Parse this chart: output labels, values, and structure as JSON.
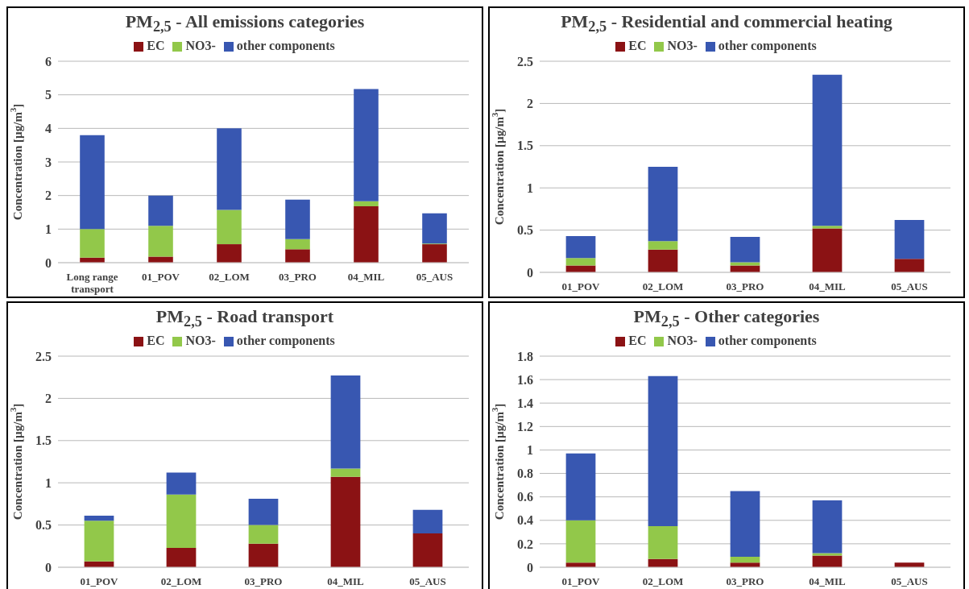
{
  "chart_data": [
    {
      "type": "bar",
      "stacked": true,
      "title": "PM$_{2,5}$ - All emissions categories",
      "ylabel": "Concentration [µg/m$^{3}$]",
      "categories": [
        "Long range transport",
        "01_POV",
        "02_LOM",
        "03_PRO",
        "04_MIL",
        "05_AUS"
      ],
      "ylim": [
        0,
        6
      ],
      "yticks": [
        0,
        1,
        2,
        3,
        4,
        5,
        6
      ],
      "grid": "y",
      "legend": "top",
      "series": [
        {
          "name": "EC",
          "color": "#8b1214",
          "values": [
            0.15,
            0.18,
            0.55,
            0.4,
            1.68,
            0.55
          ]
        },
        {
          "name": "NO3-",
          "color": "#92c84a",
          "values": [
            0.85,
            0.92,
            1.02,
            0.3,
            0.15,
            0.02
          ]
        },
        {
          "name": "other components",
          "color": "#3857b1",
          "values": [
            2.8,
            0.9,
            2.43,
            1.18,
            3.34,
            0.9
          ]
        }
      ]
    },
    {
      "type": "bar",
      "stacked": true,
      "title": "PM$_{2,5}$ - Residential and commercial heating",
      "ylabel": "Concentration [µg/m$^{3}$]",
      "categories": [
        "01_POV",
        "02_LOM",
        "03_PRO",
        "04_MIL",
        "05_AUS"
      ],
      "ylim": [
        0,
        2.5
      ],
      "yticks": [
        0,
        0.5,
        1,
        1.5,
        2,
        2.5
      ],
      "grid": "y",
      "legend": "top",
      "series": [
        {
          "name": "EC",
          "color": "#8b1214",
          "values": [
            0.08,
            0.27,
            0.08,
            0.52,
            0.16
          ]
        },
        {
          "name": "NO3-",
          "color": "#92c84a",
          "values": [
            0.09,
            0.1,
            0.04,
            0.03,
            0
          ]
        },
        {
          "name": "other components",
          "color": "#3857b1",
          "values": [
            0.26,
            0.88,
            0.3,
            1.79,
            0.46
          ]
        }
      ]
    },
    {
      "type": "bar",
      "stacked": true,
      "title": "PM$_{2,5}$ - Road transport",
      "ylabel": "Concentration [µg/m$^{3}$]",
      "categories": [
        "01_POV",
        "02_LOM",
        "03_PRO",
        "04_MIL",
        "05_AUS"
      ],
      "ylim": [
        0,
        2.5
      ],
      "yticks": [
        0,
        0.5,
        1,
        1.5,
        2,
        2.5
      ],
      "grid": "y",
      "legend": "top",
      "series": [
        {
          "name": "EC",
          "color": "#8b1214",
          "values": [
            0.07,
            0.23,
            0.28,
            1.07,
            0.4
          ]
        },
        {
          "name": "NO3-",
          "color": "#92c84a",
          "values": [
            0.48,
            0.63,
            0.22,
            0.1,
            0
          ]
        },
        {
          "name": "other components",
          "color": "#3857b1",
          "values": [
            0.06,
            0.26,
            0.31,
            1.1,
            0.28
          ]
        }
      ]
    },
    {
      "type": "bar",
      "stacked": true,
      "title": "PM$_{2,5}$ - Other categories",
      "ylabel": "Concentration [µg/m$^{3}$]",
      "categories": [
        "01_POV",
        "02_LOM",
        "03_PRO",
        "04_MIL",
        "05_AUS"
      ],
      "ylim": [
        0,
        1.8
      ],
      "yticks": [
        0,
        0.2,
        0.4,
        0.6,
        0.8,
        1,
        1.2,
        1.4,
        1.6,
        1.8
      ],
      "grid": "y",
      "legend": "top",
      "series": [
        {
          "name": "EC",
          "color": "#8b1214",
          "values": [
            0.04,
            0.07,
            0.04,
            0.1,
            0.04
          ]
        },
        {
          "name": "NO3-",
          "color": "#92c84a",
          "values": [
            0.36,
            0.28,
            0.05,
            0.02,
            0
          ]
        },
        {
          "name": "other components",
          "color": "#3857b1",
          "values": [
            0.57,
            1.28,
            0.56,
            0.45,
            0
          ]
        }
      ]
    }
  ]
}
